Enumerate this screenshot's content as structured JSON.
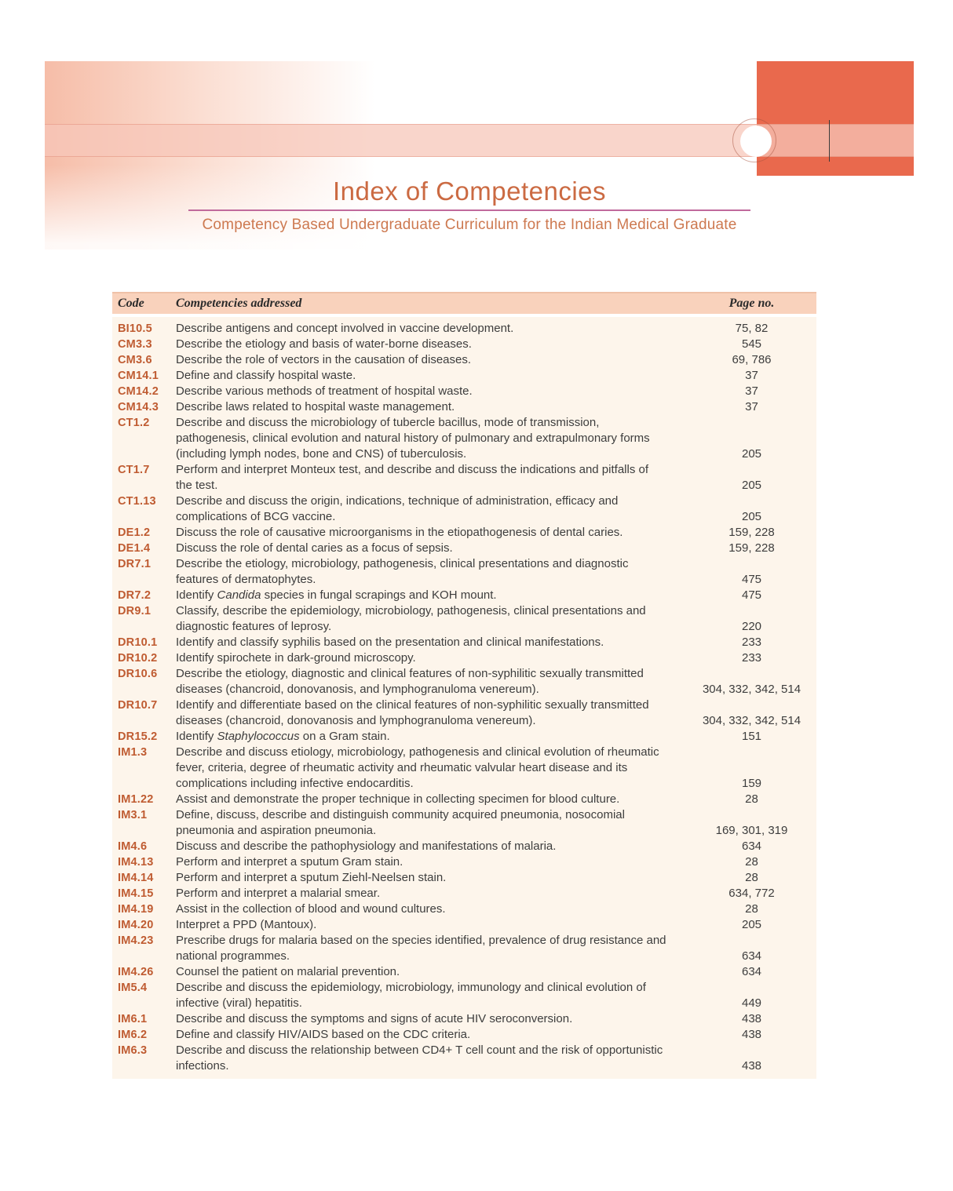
{
  "header": {
    "title": "Index of Competencies",
    "subtitle": "Competency Based Undergraduate Curriculum for the Indian Medical Graduate"
  },
  "colors": {
    "banner_coral": "#e9694d",
    "banner_pink_band": "#f8d5ca",
    "table_header_bg": "#f9d2bc",
    "table_body_bg": "#fdf5eb",
    "code_text": "#bf5b31",
    "body_text": "#3d3d3d",
    "title_text": "#cb6a42",
    "rule_pink": "#c06a9c"
  },
  "table": {
    "headers": {
      "code": "Code",
      "competency": "Competencies addressed",
      "page": "Page no."
    },
    "rows": [
      {
        "code": "BI10.5",
        "competency": "Describe antigens and concept involved in vaccine development.",
        "pages": "75, 82"
      },
      {
        "code": "CM3.3",
        "competency": "Describe the etiology and basis of water-borne diseases.",
        "pages": "545"
      },
      {
        "code": "CM3.6",
        "competency": "Describe the role of vectors in the causation of diseases.",
        "pages": "69, 786"
      },
      {
        "code": "CM14.1",
        "competency": "Define and classify hospital waste.",
        "pages": "37"
      },
      {
        "code": "CM14.2",
        "competency": "Describe various methods of treatment of hospital waste.",
        "pages": "37"
      },
      {
        "code": "CM14.3",
        "competency": "Describe laws related to hospital waste management.",
        "pages": "37"
      },
      {
        "code": "CT1.2",
        "competency": "Describe and discuss the microbiology of tubercle bacillus, mode of transmission,\npathogenesis, clinical evolution and natural history of pulmonary and extrapulmonary forms\n(including lymph nodes, bone and CNS) of tuberculosis.",
        "pages": "205"
      },
      {
        "code": "CT1.7",
        "competency": "Perform and interpret Monteux test, and describe and discuss the indications and pitfalls of\nthe test.",
        "pages": "205"
      },
      {
        "code": "CT1.13",
        "competency": "Describe and discuss the origin, indications, technique of administration, efficacy and\ncomplications of BCG vaccine.",
        "pages": "205"
      },
      {
        "code": "DE1.2",
        "competency": "Discuss the role of causative microorganisms in the etiopathogenesis of dental caries.",
        "pages": "159, 228"
      },
      {
        "code": "DE1.4",
        "competency": "Discuss the role of dental caries as a focus of sepsis.",
        "pages": "159, 228"
      },
      {
        "code": "DR7.1",
        "competency": "Describe the etiology, microbiology, pathogenesis, clinical presentations and diagnostic\nfeatures of dermatophytes.",
        "pages": "475"
      },
      {
        "code": "DR7.2",
        "competency": "Identify *Candida* species in fungal scrapings and KOH mount.",
        "pages": "475"
      },
      {
        "code": "DR9.1",
        "competency": "Classify, describe the epidemiology, microbiology, pathogenesis, clinical presentations and\ndiagnostic features of leprosy.",
        "pages": "220"
      },
      {
        "code": "DR10.1",
        "competency": "Identify and classify syphilis based on the presentation and clinical manifestations.",
        "pages": "233"
      },
      {
        "code": "DR10.2",
        "competency": "Identify spirochete in dark-ground microscopy.",
        "pages": "233"
      },
      {
        "code": "DR10.6",
        "competency": "Describe the etiology, diagnostic and clinical features of non-syphilitic sexually transmitted\ndiseases (chancroid, donovanosis, and lymphogranuloma venereum).",
        "pages": "304, 332, 342, 514"
      },
      {
        "code": "DR10.7",
        "competency": "Identify and differentiate based on the clinical features of non-syphilitic sexually transmitted\ndiseases (chancroid, donovanosis and lymphogranuloma venereum).",
        "pages": "304, 332, 342, 514"
      },
      {
        "code": "DR15.2",
        "competency": "Identify *Staphylococcus* on a Gram stain.",
        "pages": "151"
      },
      {
        "code": "IM1.3",
        "competency": "Describe and discuss etiology, microbiology, pathogenesis and clinical evolution of rheumatic\nfever, criteria, degree of rheumatic activity and rheumatic valvular heart disease and its\ncomplications including infective endocarditis.",
        "pages": "159"
      },
      {
        "code": "IM1.22",
        "competency": "Assist and demonstrate the proper technique in collecting specimen for blood culture.",
        "pages": "28"
      },
      {
        "code": "IM3.1",
        "competency": "Define, discuss, describe and distinguish community acquired pneumonia, nosocomial\npneumonia and aspiration pneumonia.",
        "pages": "169, 301, 319"
      },
      {
        "code": "IM4.6",
        "competency": "Discuss and describe the pathophysiology and manifestations of malaria.",
        "pages": "634"
      },
      {
        "code": "IM4.13",
        "competency": "Perform and interpret a sputum Gram stain.",
        "pages": "28"
      },
      {
        "code": "IM4.14",
        "competency": "Perform and interpret a sputum Ziehl-Neelsen stain.",
        "pages": "28"
      },
      {
        "code": "IM4.15",
        "competency": "Perform and interpret a malarial smear.",
        "pages": "634, 772"
      },
      {
        "code": "IM4.19",
        "competency": "Assist in the collection of blood and wound cultures.",
        "pages": "28"
      },
      {
        "code": "IM4.20",
        "competency": "Interpret a PPD (Mantoux).",
        "pages": "205"
      },
      {
        "code": "IM4.23",
        "competency": "Prescribe drugs for malaria based on the species identified, prevalence of drug resistance and\nnational programmes.",
        "pages": "634"
      },
      {
        "code": "IM4.26",
        "competency": "Counsel the patient on malarial prevention.",
        "pages": "634"
      },
      {
        "code": "IM5.4",
        "competency": "Describe and discuss the epidemiology, microbiology, immunology and clinical evolution of\ninfective (viral) hepatitis.",
        "pages": "449"
      },
      {
        "code": "IM6.1",
        "competency": "Describe and discuss the symptoms and signs of acute HIV seroconversion.",
        "pages": "438"
      },
      {
        "code": "IM6.2",
        "competency": "Define and classify HIV/AIDS based on the CDC criteria.",
        "pages": "438"
      },
      {
        "code": "IM6.3",
        "competency": "Describe and discuss the relationship between CD4+ T cell count and the risk of opportunistic\ninfections.",
        "pages": "438"
      }
    ]
  }
}
